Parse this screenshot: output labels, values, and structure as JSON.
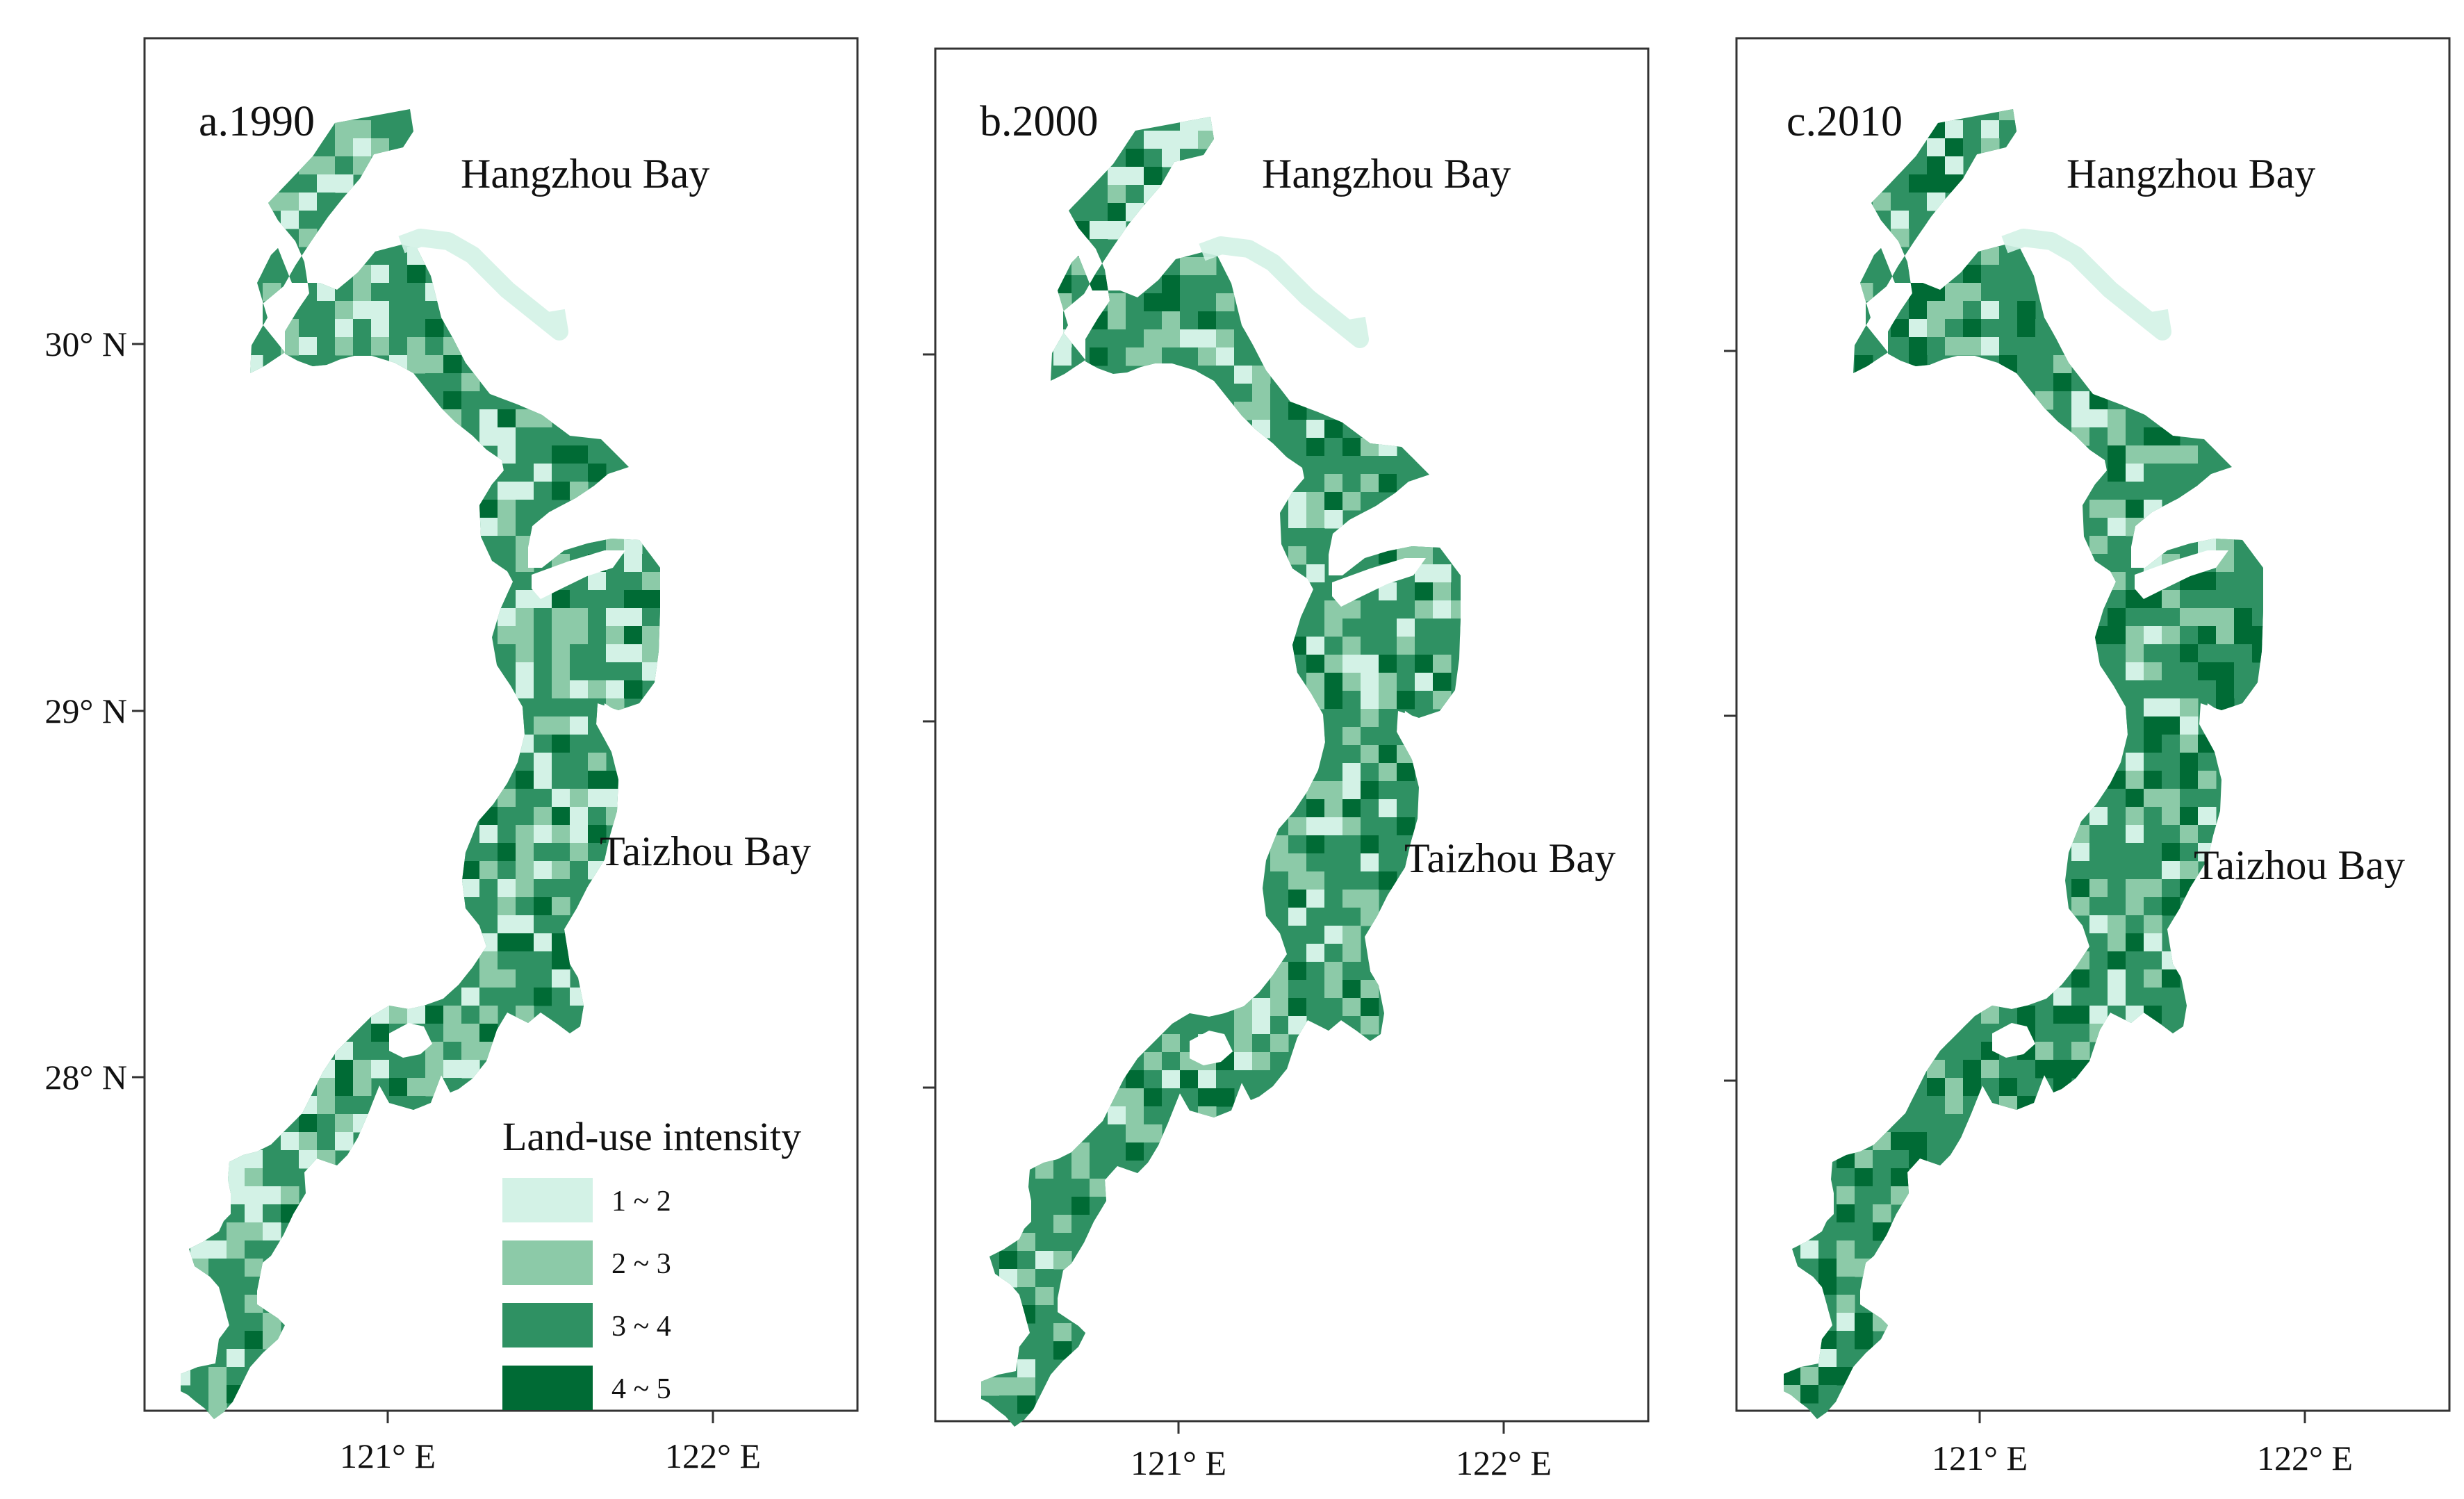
{
  "figure": {
    "panels": [
      {
        "id": "a",
        "label": "a.1990",
        "places": [
          "Hangzhou Bay",
          "Taizhou Bay"
        ],
        "cell_mix": [
          0.16,
          0.26,
          0.46,
          0.12
        ],
        "lat_ticks": [
          "30° N",
          "29° N",
          "28° N"
        ],
        "lon_ticks": [
          "121° E",
          "122° E"
        ],
        "seed": 11
      },
      {
        "id": "b",
        "label": "b.2000",
        "places": [
          "Hangzhou Bay",
          "Taizhou Bay"
        ],
        "cell_mix": [
          0.13,
          0.24,
          0.47,
          0.16
        ],
        "lat_ticks": [
          "",
          "",
          ""
        ],
        "lon_ticks": [
          "121° E",
          "122° E"
        ],
        "seed": 23
      },
      {
        "id": "c",
        "label": "c.2010",
        "places": [
          "Hangzhou Bay",
          "Taizhou Bay"
        ],
        "cell_mix": [
          0.1,
          0.2,
          0.47,
          0.23
        ],
        "lat_ticks": [
          "",
          "",
          ""
        ],
        "lon_ticks": [
          "121° E",
          "122° E"
        ],
        "seed": 37
      }
    ],
    "legend": {
      "title": "Land-use intensity",
      "classes": [
        {
          "label": "1 ~ 2",
          "color": "#d3f2e6"
        },
        {
          "label": "2 ~ 3",
          "color": "#8ccaa8"
        },
        {
          "label": "3 ~ 4",
          "color": "#2f9163"
        },
        {
          "label": "4 ~ 5",
          "color": "#006b35"
        }
      ]
    },
    "colors": {
      "frame": "#333333",
      "text": "#111111",
      "coast_base": "#2f9163"
    }
  }
}
